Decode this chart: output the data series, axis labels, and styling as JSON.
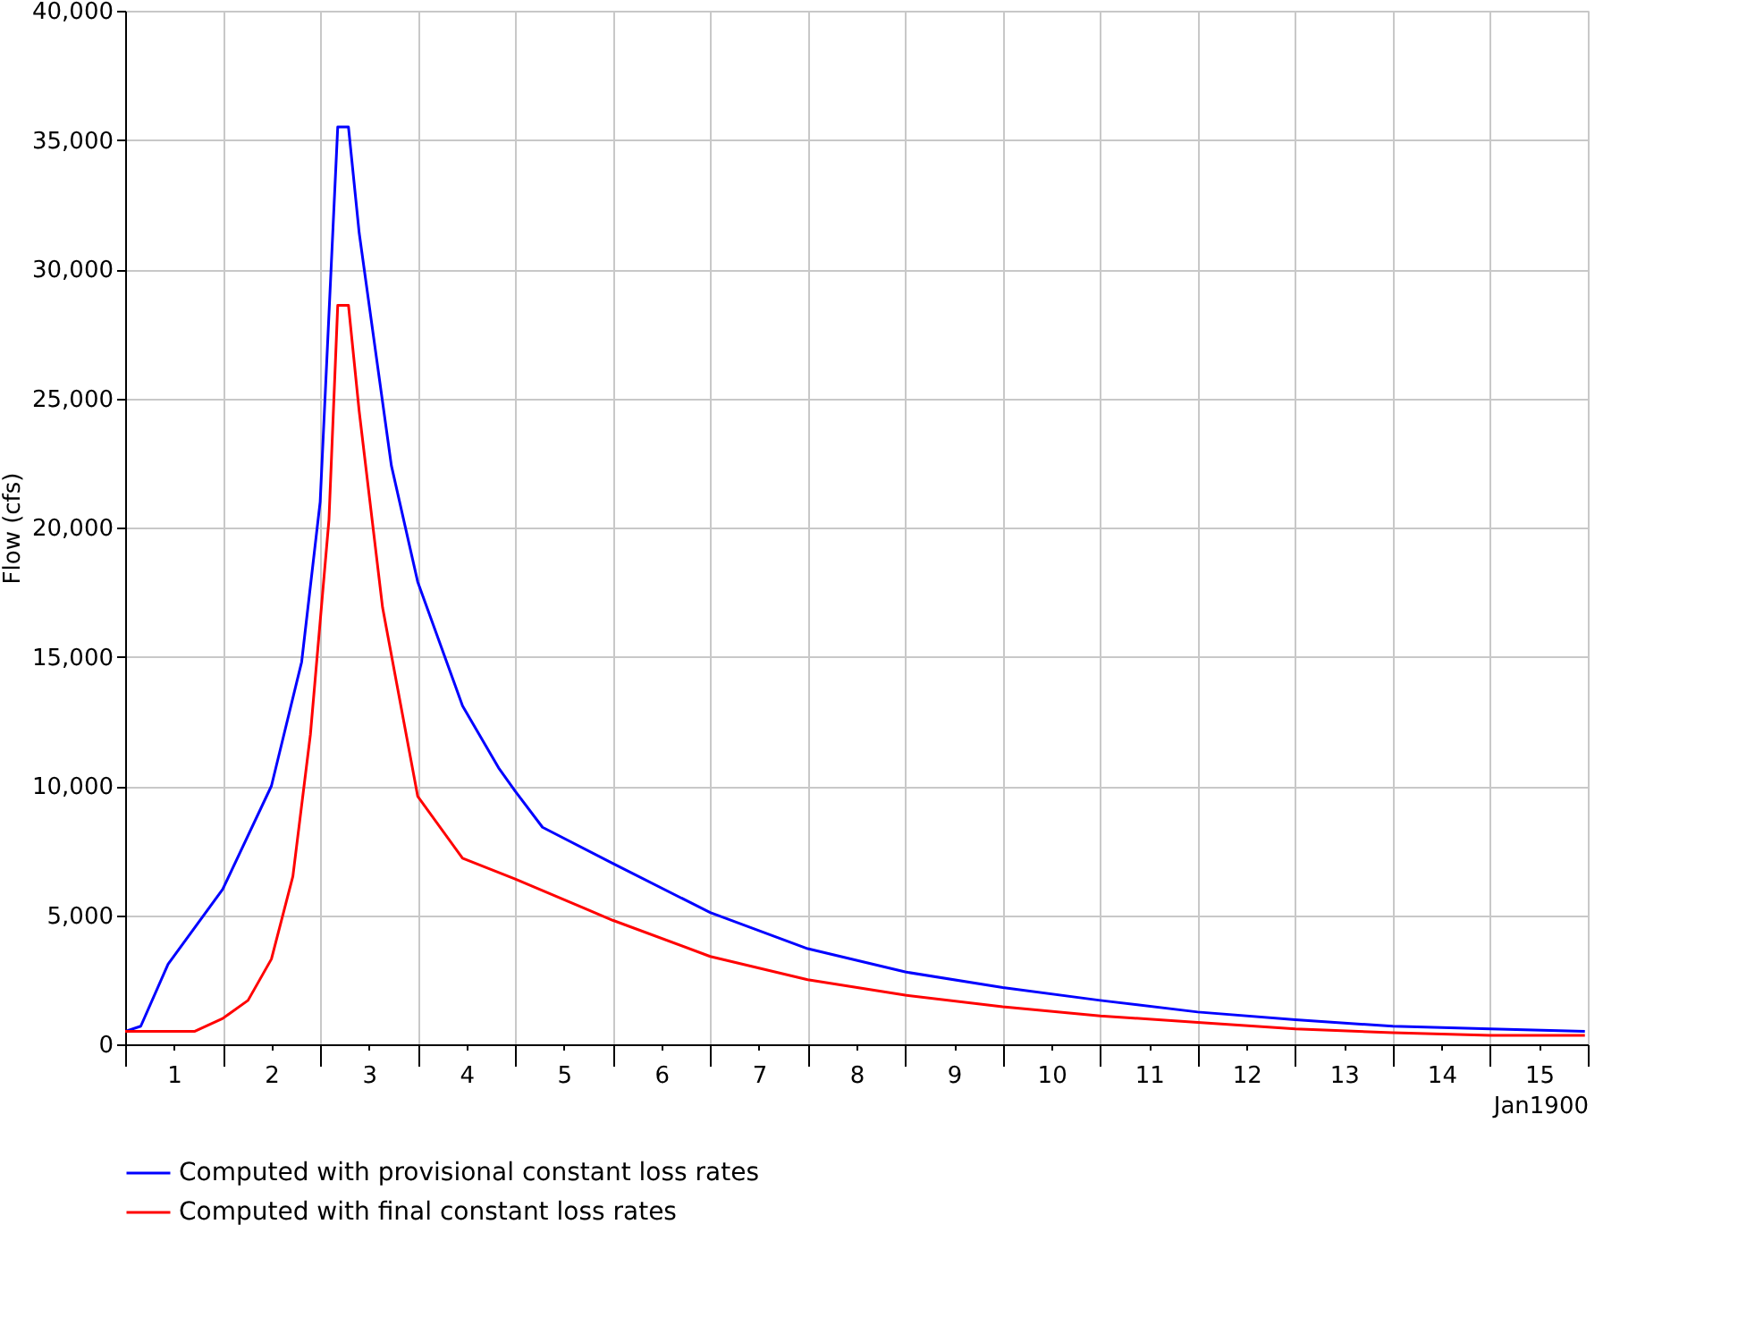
{
  "chart_data": {
    "type": "line",
    "ylabel": "Flow (cfs)",
    "xlabel": "Jan1900",
    "xlim": [
      0.5,
      15.5
    ],
    "ylim": [
      0,
      40000
    ],
    "xticks": [
      {
        "value": 0.5,
        "label": null
      },
      1,
      {
        "value": 1.5,
        "label": null
      },
      2,
      {
        "value": 2.5,
        "label": null
      },
      3,
      {
        "value": 3.5,
        "label": null
      },
      4,
      {
        "value": 4.5,
        "label": null
      },
      5,
      {
        "value": 5.5,
        "label": null
      },
      6,
      {
        "value": 6.5,
        "label": null
      },
      7,
      {
        "value": 7.5,
        "label": null
      },
      8,
      {
        "value": 8.5,
        "label": null
      },
      9,
      {
        "value": 9.5,
        "label": null
      },
      10,
      {
        "value": 10.5,
        "label": null
      },
      11,
      {
        "value": 11.5,
        "label": null
      },
      12,
      {
        "value": 12.5,
        "label": null
      },
      13,
      {
        "value": 13.5,
        "label": null
      },
      14,
      {
        "value": 14.5,
        "label": null
      },
      15,
      {
        "value": 15.5,
        "label": null
      }
    ],
    "yticks": [
      {
        "value": 0,
        "label": "0"
      },
      {
        "value": 5000,
        "label": "5,000"
      },
      {
        "value": 10000,
        "label": "10,000"
      },
      {
        "value": 15000,
        "label": "15,000"
      },
      {
        "value": 20000,
        "label": "20,000"
      },
      {
        "value": 25000,
        "label": "25,000"
      },
      {
        "value": 30000,
        "label": "30,000"
      },
      {
        "value": 35000,
        "label": "35,000"
      },
      {
        "value": 40000,
        "label": "40,000"
      }
    ],
    "grid": true,
    "legend": "bottom",
    "line_style": "solid",
    "marker": "none",
    "series": [
      {
        "name": "Computed with provisional constant loss rates",
        "color": "#0000ff",
        "x": [
          0.5,
          0.66,
          0.94,
          1.5,
          2.0,
          2.31,
          2.5,
          2.68,
          2.79,
          2.9,
          3.23,
          3.5,
          3.96,
          4.33,
          4.5,
          4.78,
          5.5,
          6.5,
          7.5,
          8.5,
          9.5,
          10.5,
          11.5,
          12.5,
          13.5,
          14.5,
          15.47
        ],
        "values": [
          500,
          700,
          3100,
          6000,
          10000,
          14800,
          21000,
          35500,
          35500,
          31400,
          22400,
          17900,
          13100,
          10700,
          9800,
          8400,
          7000,
          5100,
          3700,
          2800,
          2200,
          1700,
          1250,
          950,
          700,
          600,
          500
        ]
      },
      {
        "name": "Computed with final constant loss rates",
        "color": "#ff0000",
        "x": [
          0.5,
          1.21,
          1.5,
          1.76,
          2.0,
          2.22,
          2.4,
          2.59,
          2.68,
          2.79,
          2.9,
          3.14,
          3.5,
          3.96,
          4.5,
          5.5,
          6.5,
          7.5,
          8.5,
          9.5,
          10.5,
          11.5,
          12.5,
          13.5,
          14.5,
          15.47
        ],
        "values": [
          500,
          500,
          1000,
          1700,
          3300,
          6500,
          12000,
          20300,
          28600,
          28600,
          24500,
          16900,
          9600,
          7200,
          6400,
          4800,
          3400,
          2500,
          1900,
          1450,
          1100,
          850,
          600,
          450,
          350,
          350
        ]
      }
    ]
  }
}
